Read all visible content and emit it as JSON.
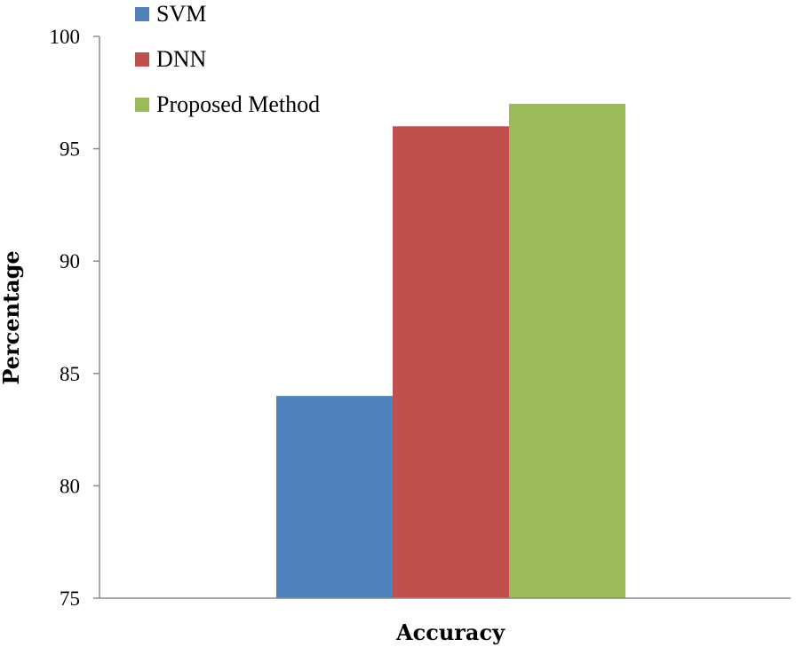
{
  "chart_data": {
    "type": "bar",
    "categories": [
      "Accuracy"
    ],
    "series": [
      {
        "name": "SVM",
        "values": [
          84
        ],
        "color": "#4f81bd"
      },
      {
        "name": "DNN",
        "values": [
          96
        ],
        "color": "#c0504d"
      },
      {
        "name": "Proposed Method",
        "values": [
          97
        ],
        "color": "#9bbb59"
      }
    ],
    "title": "",
    "xlabel": "Accuracy",
    "ylabel": "Percentage",
    "ylim": [
      75,
      100
    ],
    "yticks": [
      "75",
      "80",
      "85",
      "90",
      "95",
      "100"
    ],
    "grid": false,
    "legend_position": "top-left"
  }
}
